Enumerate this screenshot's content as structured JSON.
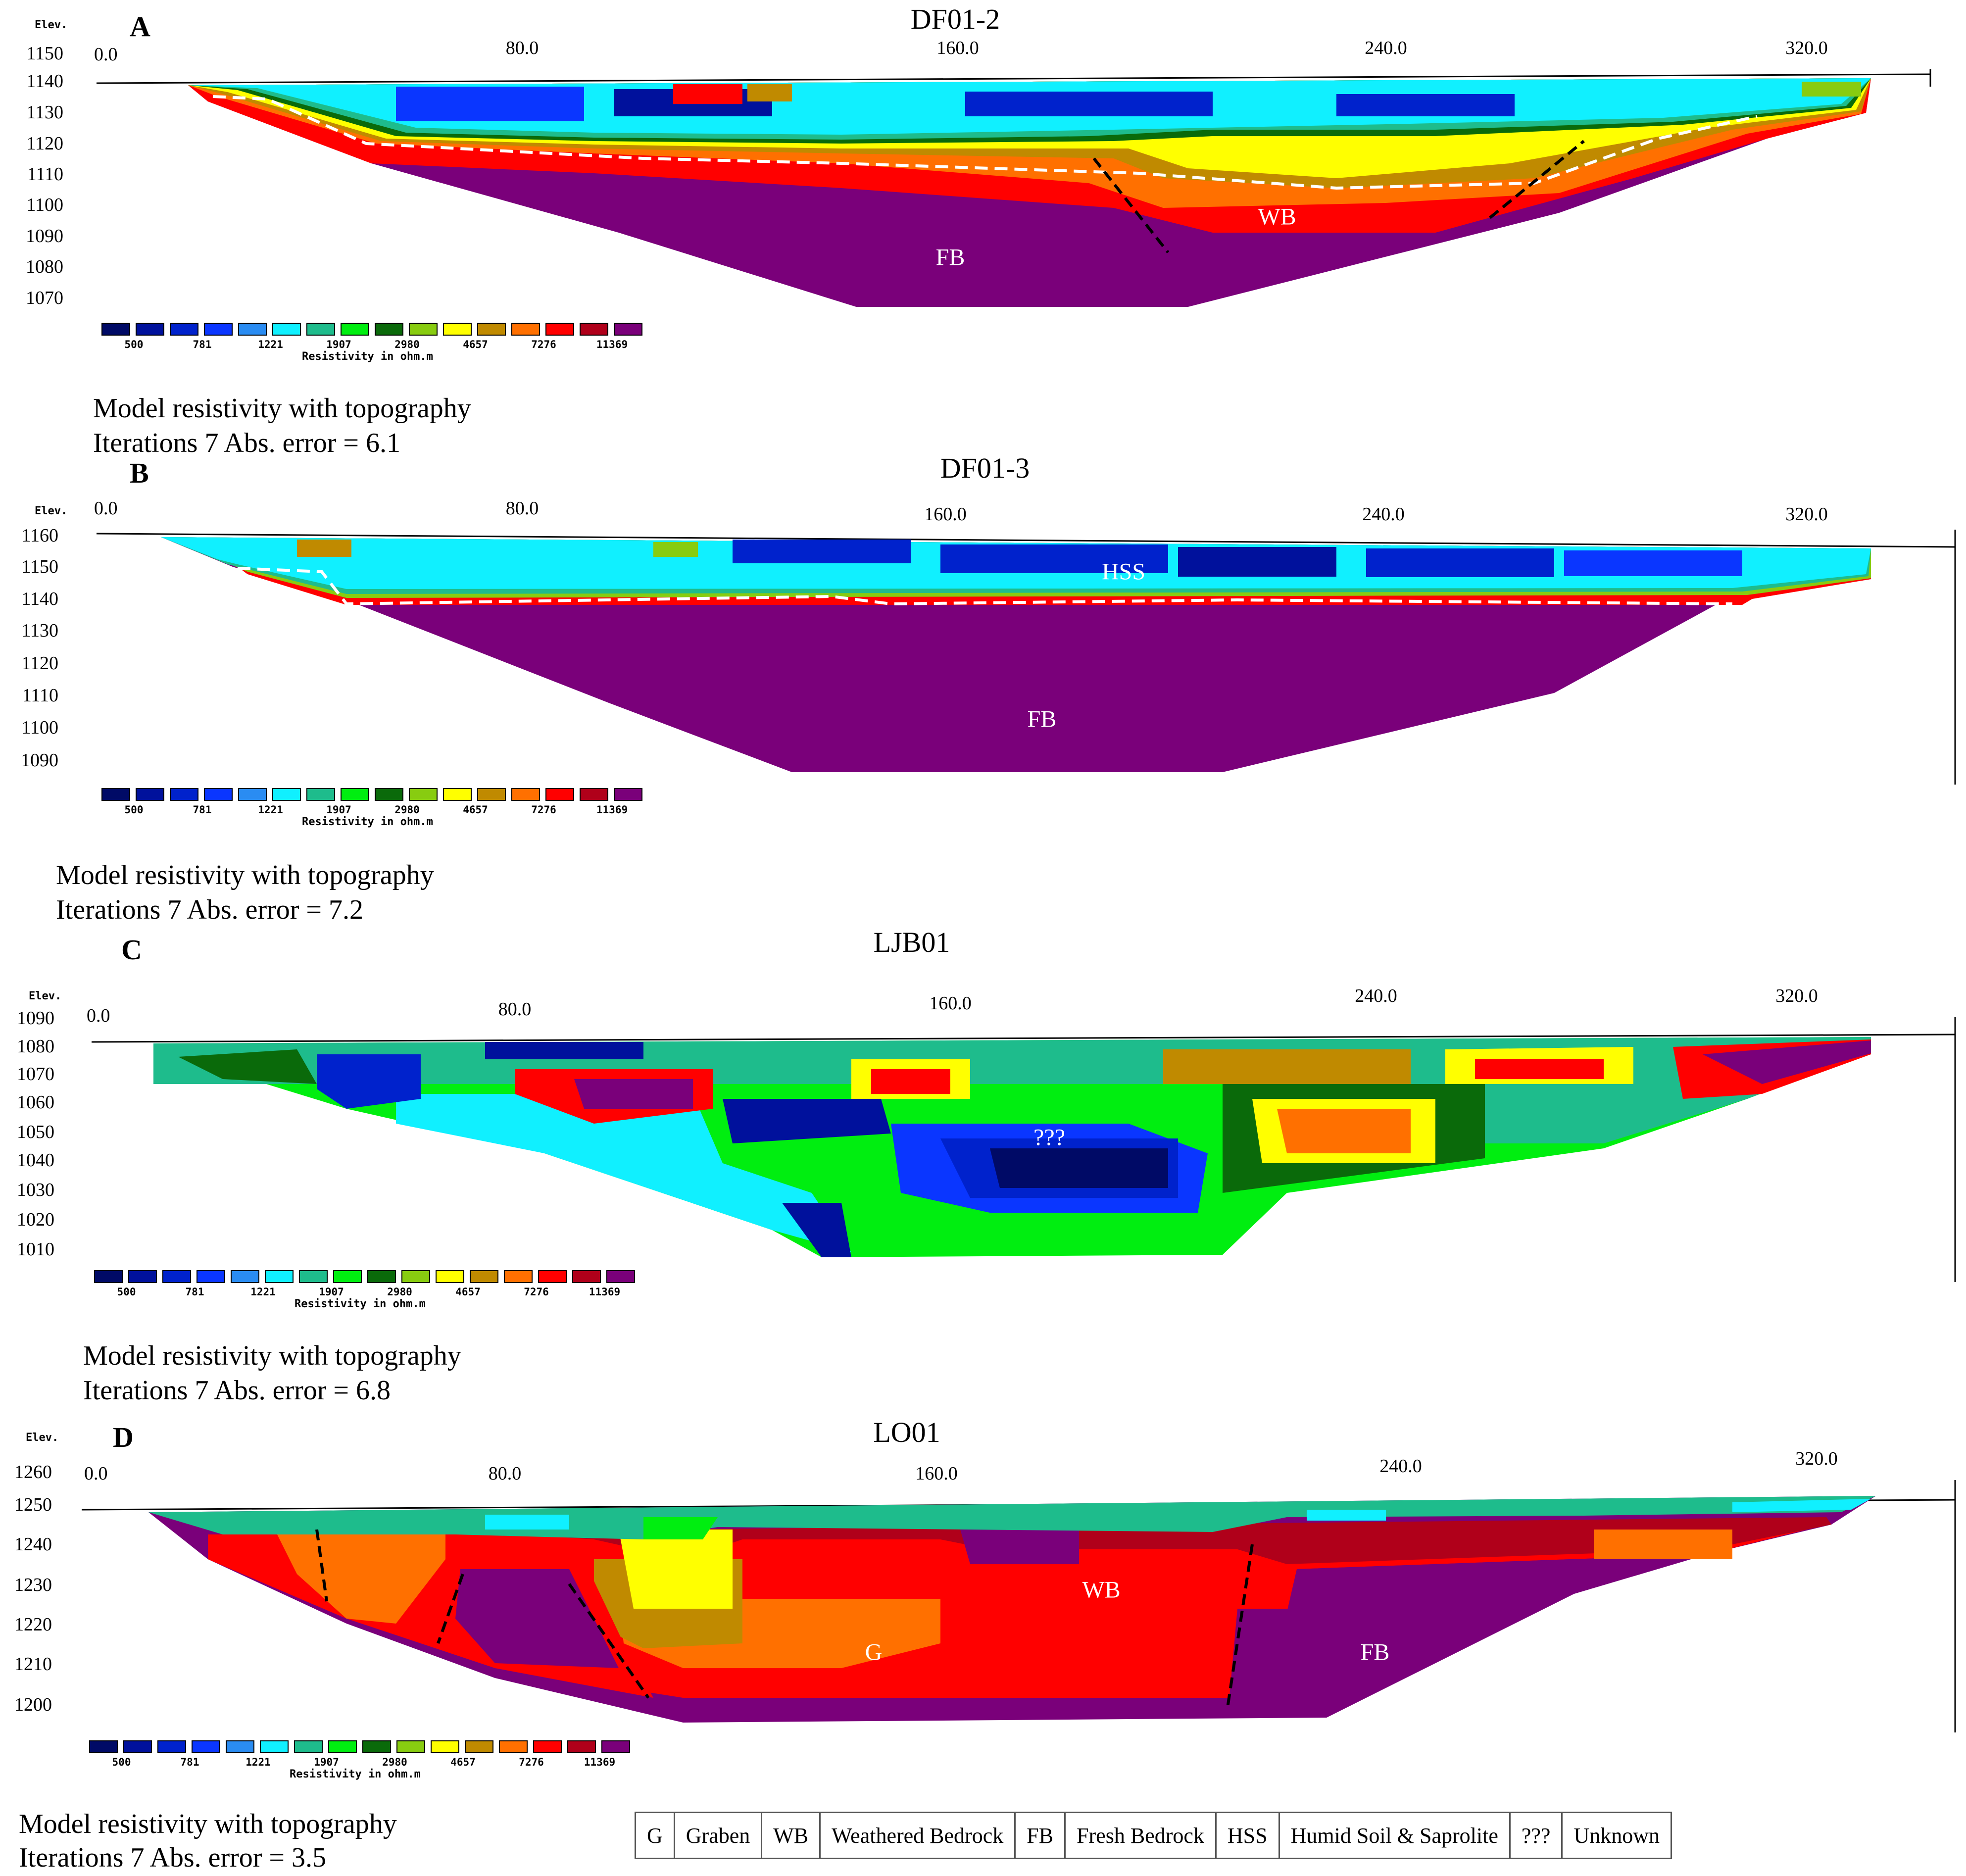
{
  "palette": [
    "#000a66",
    "#00119c",
    "#0022cc",
    "#0a36ff",
    "#2a8cf2",
    "#10f0ff",
    "#1ebc8c",
    "#00ee10",
    "#0a6a0a",
    "#88cc10",
    "#ffff00",
    "#c08a00",
    "#ff7000",
    "#ff0000",
    "#b0001a",
    "#7a007a"
  ],
  "panels": [
    {
      "id": "A",
      "letter": "A",
      "title": "DF01-2",
      "elev_label": "Elev.",
      "y_ticks": [
        "1150",
        "1140",
        "1130",
        "1120",
        "1110",
        "1100",
        "1090",
        "1080",
        "1070"
      ],
      "x_ticks": [
        "0.0",
        "80.0",
        "160.0",
        "240.0",
        "320.0"
      ],
      "colorbar_ticks": [
        "500",
        "781",
        "1221",
        "1907",
        "2980",
        "4657",
        "7276",
        "11369"
      ],
      "colorbar_title": "Resistivity in ohm.m",
      "zone_labels": [
        "FB",
        "WB"
      ],
      "caption_1": "Model resistivity with topography",
      "caption_2": "Iterations 7 Abs. error = 6.1",
      "chart_data": {
        "type": "heatmap",
        "title": "DF01-2",
        "ylabel": "Elev.",
        "x_tick_labels": [
          "0.0",
          "80.0",
          "160.0",
          "240.0",
          "320.0"
        ],
        "ylim": [
          1065,
          1152
        ],
        "xlim": [
          0,
          350
        ],
        "colorbar": {
          "title": "Resistivity in ohm.m",
          "ticks": [
            500,
            781,
            1221,
            1907,
            2980,
            4657,
            7276,
            11369
          ]
        },
        "annotations": [
          "FB",
          "WB"
        ],
        "grid": false
      }
    },
    {
      "id": "B",
      "letter": "B",
      "title": "DF01-3",
      "elev_label": "Elev.",
      "y_ticks": [
        "1160",
        "1150",
        "1140",
        "1130",
        "1120",
        "1110",
        "1100",
        "1090"
      ],
      "x_ticks": [
        "0.0",
        "80.0",
        "160.0",
        "240.0",
        "320.0"
      ],
      "colorbar_ticks": [
        "500",
        "781",
        "1221",
        "1907",
        "2980",
        "4657",
        "7276",
        "11369"
      ],
      "colorbar_title": "Resistivity in ohm.m",
      "zone_labels": [
        "HSS",
        "FB"
      ],
      "caption_1": "Model resistivity with topography",
      "caption_2": "Iterations 7 Abs. error = 7.2",
      "chart_data": {
        "type": "heatmap",
        "title": "DF01-3",
        "ylabel": "Elev.",
        "x_tick_labels": [
          "0.0",
          "80.0",
          "160.0",
          "240.0",
          "320.0"
        ],
        "ylim": [
          1084,
          1162
        ],
        "xlim": [
          0,
          350
        ],
        "colorbar": {
          "title": "Resistivity in ohm.m",
          "ticks": [
            500,
            781,
            1221,
            1907,
            2980,
            4657,
            7276,
            11369
          ]
        },
        "annotations": [
          "HSS",
          "FB"
        ],
        "grid": false
      }
    },
    {
      "id": "C",
      "letter": "C",
      "title": "LJB01",
      "elev_label": "Elev.",
      "y_ticks": [
        "1090",
        "1080",
        "1070",
        "1060",
        "1050",
        "1040",
        "1030",
        "1020",
        "1010"
      ],
      "x_ticks": [
        "0.0",
        "80.0",
        "160.0",
        "240.0",
        "320.0"
      ],
      "colorbar_ticks": [
        "500",
        "781",
        "1221",
        "1907",
        "2980",
        "4657",
        "7276",
        "11369"
      ],
      "colorbar_title": "Resistivity in ohm.m",
      "zone_labels": [
        "???"
      ],
      "caption_1": "Model resistivity with topography",
      "caption_2": "Iterations 7 Abs. error = 6.8",
      "chart_data": {
        "type": "heatmap",
        "title": "LJB01",
        "ylabel": "Elev.",
        "x_tick_labels": [
          "0.0",
          "80.0",
          "160.0",
          "240.0",
          "320.0"
        ],
        "ylim": [
          1008,
          1092
        ],
        "xlim": [
          0,
          350
        ],
        "colorbar": {
          "title": "Resistivity in ohm.m",
          "ticks": [
            500,
            781,
            1221,
            1907,
            2980,
            4657,
            7276,
            11369
          ]
        },
        "annotations": [
          "???"
        ],
        "grid": false
      }
    },
    {
      "id": "D",
      "letter": "D",
      "title": "LO01",
      "elev_label": "Elev.",
      "y_ticks": [
        "1260",
        "1250",
        "1240",
        "1230",
        "1220",
        "1210",
        "1200"
      ],
      "x_ticks": [
        "0.0",
        "80.0",
        "160.0",
        "240.0",
        "320.0"
      ],
      "colorbar_ticks": [
        "500",
        "781",
        "1221",
        "1907",
        "2980",
        "4657",
        "7276",
        "11369"
      ],
      "colorbar_title": "Resistivity in ohm.m",
      "zone_labels": [
        "WB",
        "G",
        "FB"
      ],
      "caption_1": "Model resistivity with topography",
      "caption_2": "Iterations 7 Abs. error = 3.5",
      "chart_data": {
        "type": "heatmap",
        "title": "LO01",
        "ylabel": "Elev.",
        "x_tick_labels": [
          "0.0",
          "80.0",
          "160.0",
          "240.0",
          "320.0"
        ],
        "ylim": [
          1195,
          1262
        ],
        "xlim": [
          0,
          350
        ],
        "colorbar": {
          "title": "Resistivity in ohm.m",
          "ticks": [
            500,
            781,
            1221,
            1907,
            2980,
            4657,
            7276,
            11369
          ]
        },
        "annotations": [
          "WB",
          "G",
          "FB"
        ],
        "grid": false
      }
    }
  ],
  "legend": [
    {
      "abbr": "G",
      "meaning": "Graben"
    },
    {
      "abbr": "WB",
      "meaning": "Weathered Bedrock"
    },
    {
      "abbr": "FB",
      "meaning": "Fresh Bedrock"
    },
    {
      "abbr": "HSS",
      "meaning": "Humid Soil & Saprolite"
    },
    {
      "abbr": "???",
      "meaning": "Unknown"
    }
  ]
}
